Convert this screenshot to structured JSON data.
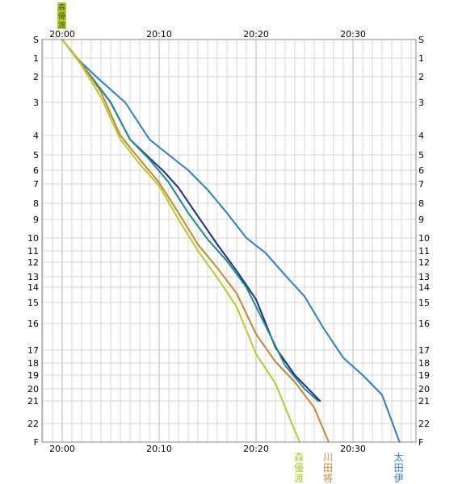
{
  "chart_data": {
    "type": "line",
    "title": "",
    "xlabel": "",
    "ylabel": "",
    "x_unit": "minutes after 20:00",
    "xlim": [
      0,
      36.5
    ],
    "x_tick_labels": [
      "20:00",
      "20:10",
      "20:20",
      "20:30"
    ],
    "x_ticks": [
      0,
      10,
      20,
      30
    ],
    "y_labels": [
      "S",
      "1",
      "2",
      "3",
      "4",
      "5",
      "6",
      "7",
      "8",
      "9",
      "10",
      "11",
      "12",
      "13",
      "14",
      "15",
      "16",
      "17",
      "18",
      "19",
      "20",
      "21",
      "22",
      "F"
    ],
    "y_label_is_reversed": true,
    "grid": true,
    "series": [
      {
        "name": "",
        "color": "#1a2f8c",
        "x": [
          0,
          1.5,
          3,
          5,
          7,
          9,
          10.5,
          12,
          14,
          16,
          18,
          20,
          22,
          24,
          26.6
        ],
        "y": [
          0,
          1,
          2,
          3,
          4.2,
          5.2,
          6.1,
          7.2,
          8.8,
          10.5,
          12.6,
          14.8,
          16.9,
          19.0,
          21.0
        ]
      },
      {
        "name": "",
        "color": "#1e8a8a",
        "x": [
          0,
          1.5,
          3,
          5,
          7,
          9,
          11,
          13,
          15,
          17,
          19,
          21,
          23,
          25,
          26.4
        ],
        "y": [
          0,
          1,
          2,
          3,
          4.2,
          5.3,
          6.9,
          8.6,
          10.1,
          11.9,
          14.0,
          16.1,
          18.2,
          20.0,
          21.0
        ]
      },
      {
        "name": "太田伊",
        "color": "#2a7fc8",
        "x": [
          0,
          1.5,
          3.5,
          6.5,
          9,
          11,
          13,
          15,
          17,
          19,
          21,
          23,
          25,
          27,
          29,
          31,
          33,
          34.8
        ],
        "y": [
          0,
          1,
          2,
          3,
          4.2,
          5.0,
          6.0,
          7.3,
          8.6,
          10.0,
          11.2,
          12.9,
          14.6,
          16.2,
          17.6,
          19.0,
          20.5,
          23.0
        ]
      },
      {
        "name": "川田将",
        "color": "#c8862a",
        "x": [
          0,
          2,
          4,
          6,
          8,
          10,
          12,
          14,
          16,
          18,
          20,
          22,
          24,
          26,
          27.5
        ],
        "y": [
          0,
          1.3,
          2.6,
          4.0,
          5.3,
          6.9,
          8.6,
          10.5,
          12.4,
          14.4,
          16.4,
          17.9,
          19.5,
          21.3,
          23.0
        ]
      },
      {
        "name": "森優渡",
        "color": "#b8c832",
        "x": [
          0,
          2,
          4,
          6,
          8,
          10,
          12,
          14,
          16,
          18,
          20,
          22,
          23.5,
          24.5
        ],
        "y": [
          0,
          1.4,
          2.8,
          4.2,
          5.6,
          7.1,
          9.0,
          11.0,
          13.1,
          15.2,
          17.3,
          19.6,
          21.8,
          23.0
        ]
      }
    ]
  },
  "corner_logo_text": "森優渡"
}
